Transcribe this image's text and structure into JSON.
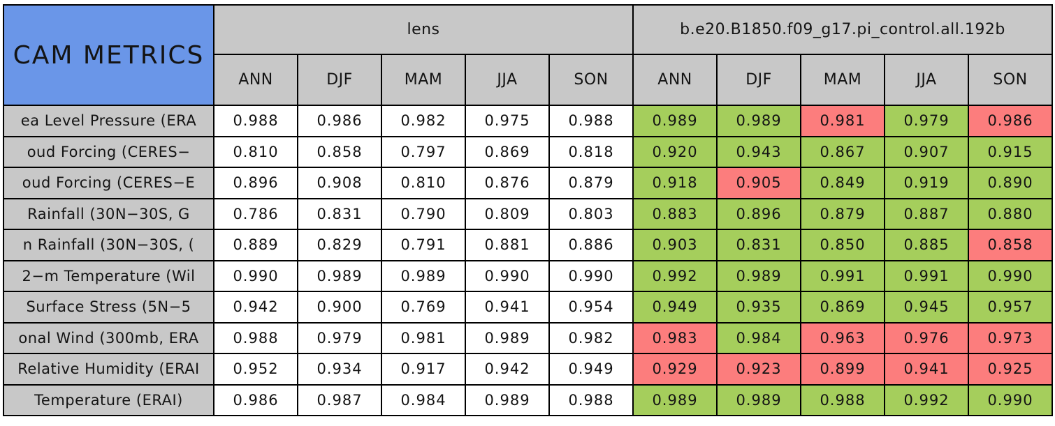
{
  "chart_data": {
    "type": "table",
    "title": "CAM METRICS",
    "column_groups": [
      "lens",
      "b.e20.B1850.f09_g17.pi_control.all.192b"
    ],
    "seasons": [
      "ANN",
      "DJF",
      "MAM",
      "JJA",
      "SON"
    ],
    "colors": {
      "title_bg": "#6a96e8",
      "header_bg": "#c8c8c8",
      "green": "#a5ce5c",
      "red": "#fc7d7d",
      "grid": "#000000",
      "text": "#141414"
    },
    "rows": [
      {
        "metric": "ea Level Pressure (ERA",
        "lens": [
          "0.988",
          "0.986",
          "0.982",
          "0.975",
          "0.988"
        ],
        "control": [
          "0.989",
          "0.989",
          "0.981",
          "0.979",
          "0.986"
        ],
        "control_flags": [
          "green",
          "green",
          "red",
          "green",
          "red"
        ]
      },
      {
        "metric": "oud Forcing (CERES−",
        "lens": [
          "0.810",
          "0.858",
          "0.797",
          "0.869",
          "0.818"
        ],
        "control": [
          "0.920",
          "0.943",
          "0.867",
          "0.907",
          "0.915"
        ],
        "control_flags": [
          "green",
          "green",
          "green",
          "green",
          "green"
        ]
      },
      {
        "metric": "oud Forcing (CERES−E",
        "lens": [
          "0.896",
          "0.908",
          "0.810",
          "0.876",
          "0.879"
        ],
        "control": [
          "0.918",
          "0.905",
          "0.849",
          "0.919",
          "0.890"
        ],
        "control_flags": [
          "green",
          "red",
          "green",
          "green",
          "green"
        ]
      },
      {
        "metric": "Rainfall (30N−30S, G",
        "lens": [
          "0.786",
          "0.831",
          "0.790",
          "0.809",
          "0.803"
        ],
        "control": [
          "0.883",
          "0.896",
          "0.879",
          "0.887",
          "0.880"
        ],
        "control_flags": [
          "green",
          "green",
          "green",
          "green",
          "green"
        ]
      },
      {
        "metric": "n Rainfall (30N−30S, (",
        "lens": [
          "0.889",
          "0.829",
          "0.791",
          "0.881",
          "0.886"
        ],
        "control": [
          "0.903",
          "0.831",
          "0.850",
          "0.885",
          "0.858"
        ],
        "control_flags": [
          "green",
          "green",
          "green",
          "green",
          "red"
        ]
      },
      {
        "metric": "2−m Temperature (Wil",
        "lens": [
          "0.990",
          "0.989",
          "0.989",
          "0.990",
          "0.990"
        ],
        "control": [
          "0.992",
          "0.989",
          "0.991",
          "0.991",
          "0.990"
        ],
        "control_flags": [
          "green",
          "green",
          "green",
          "green",
          "green"
        ]
      },
      {
        "metric": "Surface Stress (5N−5",
        "lens": [
          "0.942",
          "0.900",
          "0.769",
          "0.941",
          "0.954"
        ],
        "control": [
          "0.949",
          "0.935",
          "0.869",
          "0.945",
          "0.957"
        ],
        "control_flags": [
          "green",
          "green",
          "green",
          "green",
          "green"
        ]
      },
      {
        "metric": "onal Wind (300mb, ERA",
        "lens": [
          "0.988",
          "0.979",
          "0.981",
          "0.989",
          "0.982"
        ],
        "control": [
          "0.983",
          "0.984",
          "0.963",
          "0.976",
          "0.973"
        ],
        "control_flags": [
          "red",
          "green",
          "red",
          "red",
          "red"
        ]
      },
      {
        "metric": "Relative Humidity (ERAI",
        "lens": [
          "0.952",
          "0.934",
          "0.917",
          "0.942",
          "0.949"
        ],
        "control": [
          "0.929",
          "0.923",
          "0.899",
          "0.941",
          "0.925"
        ],
        "control_flags": [
          "red",
          "red",
          "red",
          "red",
          "red"
        ]
      },
      {
        "metric": "Temperature (ERAI)",
        "lens": [
          "0.986",
          "0.987",
          "0.984",
          "0.989",
          "0.988"
        ],
        "control": [
          "0.989",
          "0.989",
          "0.988",
          "0.992",
          "0.990"
        ],
        "control_flags": [
          "green",
          "green",
          "green",
          "green",
          "green"
        ]
      }
    ]
  }
}
